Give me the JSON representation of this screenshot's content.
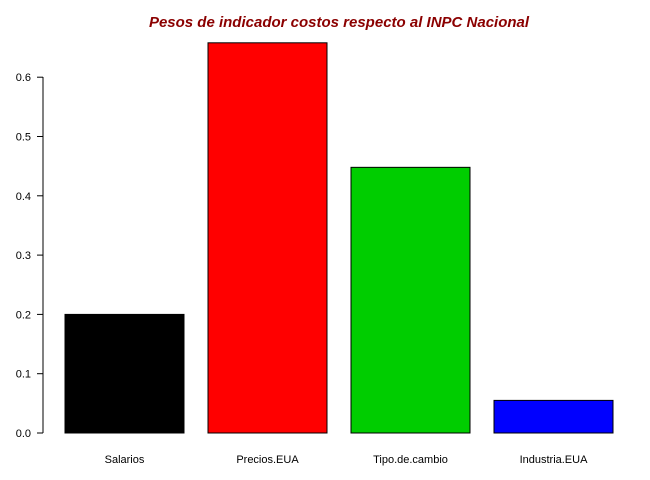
{
  "chart_data": {
    "type": "bar",
    "title": "Pesos de indicador costos respecto al INPC Nacional",
    "title_color": "#8B0000",
    "categories": [
      "Salarios",
      "Precios.EUA",
      "Tipo.de.cambio",
      "Industria.EUA"
    ],
    "values": [
      0.2,
      0.658,
      0.448,
      0.055
    ],
    "colors": [
      "#000000",
      "#FF0000",
      "#00CD00",
      "#0000FF"
    ],
    "xlabel": "",
    "ylabel": "",
    "ylim": [
      0,
      0.66
    ],
    "yticks": [
      0.0,
      0.1,
      0.2,
      0.3,
      0.4,
      0.5,
      0.6
    ],
    "ytick_labels": [
      "0.0",
      "0.1",
      "0.2",
      "0.3",
      "0.4",
      "0.5",
      "0.6"
    ],
    "grid": false,
    "legend": "none"
  }
}
